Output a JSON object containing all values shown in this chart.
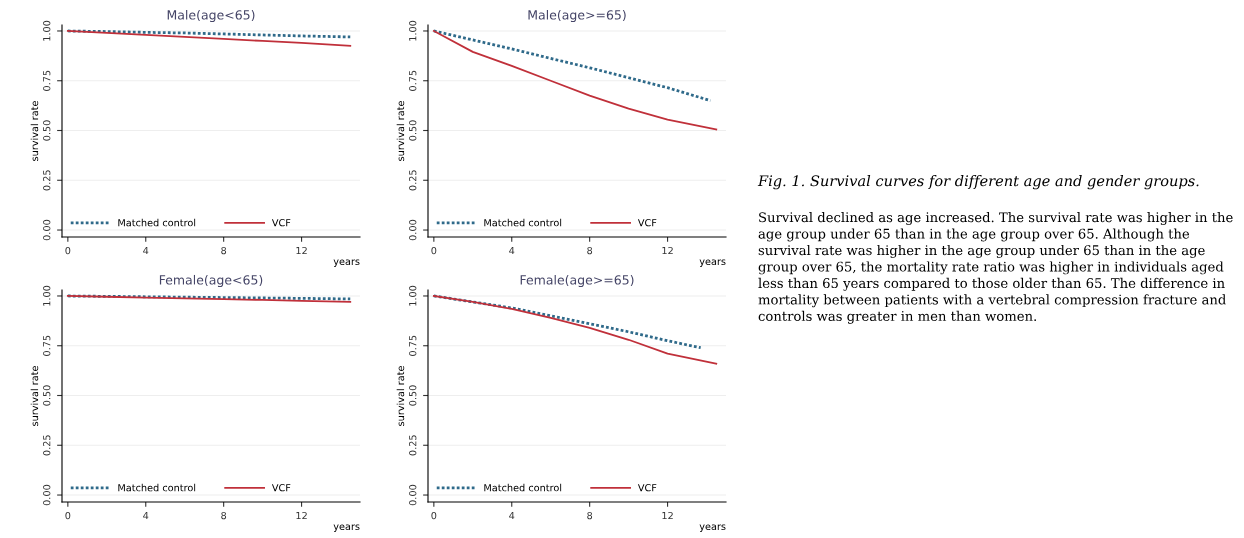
{
  "chart_data": [
    {
      "type": "line",
      "title": "Male(age<65)",
      "xlabel": "years",
      "ylabel": "survival rate",
      "xlim": [
        -0.3,
        15
      ],
      "ylim": [
        -0.035,
        1.03
      ],
      "xticks": [
        0,
        4,
        8,
        12
      ],
      "yticks": [
        {
          "value": 0,
          "label": "0.00"
        },
        {
          "value": 0.25,
          "label": "0.25"
        },
        {
          "value": 0.5,
          "label": "0.50"
        },
        {
          "value": 0.75,
          "label": "0.75"
        },
        {
          "value": 1,
          "label": "1.00"
        }
      ],
      "grid": "y",
      "legend": "bottom left",
      "x": [
        0,
        2,
        4,
        6,
        8,
        10,
        12,
        14.5
      ],
      "series": [
        {
          "name": "Matched control",
          "color": "#2f6a8a",
          "line_style": "dotted",
          "values": [
            1.0,
            0.997,
            0.993,
            0.99,
            0.985,
            0.98,
            0.975,
            0.97
          ]
        },
        {
          "name": "VCF",
          "color": "#c0303a",
          "line_style": "solid",
          "values": [
            1.0,
            0.99,
            0.98,
            0.97,
            0.96,
            0.95,
            0.94,
            0.925
          ]
        }
      ]
    },
    {
      "type": "line",
      "title": "Male(age>=65)",
      "xlabel": "years",
      "ylabel": "survival rate",
      "xlim": [
        -0.3,
        15
      ],
      "ylim": [
        -0.035,
        1.03
      ],
      "xticks": [
        0,
        4,
        8,
        12
      ],
      "yticks": [
        {
          "value": 0,
          "label": "0.00"
        },
        {
          "value": 0.25,
          "label": "0.25"
        },
        {
          "value": 0.5,
          "label": "0.50"
        },
        {
          "value": 0.75,
          "label": "0.75"
        },
        {
          "value": 1,
          "label": "1.00"
        }
      ],
      "grid": "y",
      "legend": "bottom left",
      "x": [
        0,
        2,
        4,
        6,
        8,
        10,
        12,
        14.2
      ],
      "series": [
        {
          "name": "Matched control",
          "color": "#2f6a8a",
          "line_style": "dotted",
          "values": [
            1.0,
            0.955,
            0.91,
            0.862,
            0.815,
            0.765,
            0.715,
            0.65
          ]
        },
        {
          "name": "VCF",
          "color": "#c0303a",
          "line_style": "solid",
          "x": [
            0,
            2,
            4,
            6,
            8,
            10,
            12,
            14.5
          ],
          "values": [
            1.0,
            0.895,
            0.825,
            0.75,
            0.675,
            0.61,
            0.555,
            0.505
          ]
        }
      ]
    },
    {
      "type": "line",
      "title": "Female(age<65)",
      "xlabel": "years",
      "ylabel": "survival rate",
      "xlim": [
        -0.3,
        15
      ],
      "ylim": [
        -0.035,
        1.03
      ],
      "xticks": [
        0,
        4,
        8,
        12
      ],
      "yticks": [
        {
          "value": 0,
          "label": "0.00"
        },
        {
          "value": 0.25,
          "label": "0.25"
        },
        {
          "value": 0.5,
          "label": "0.50"
        },
        {
          "value": 0.75,
          "label": "0.75"
        },
        {
          "value": 1,
          "label": "1.00"
        }
      ],
      "grid": "y",
      "legend": "bottom left",
      "x": [
        0,
        2,
        4,
        6,
        8,
        10,
        12,
        14.5
      ],
      "series": [
        {
          "name": "Matched control",
          "color": "#2f6a8a",
          "line_style": "dotted",
          "values": [
            1.0,
            0.998,
            0.996,
            0.994,
            0.992,
            0.99,
            0.988,
            0.985
          ]
        },
        {
          "name": "VCF",
          "color": "#c0303a",
          "line_style": "solid",
          "values": [
            1.0,
            0.996,
            0.992,
            0.988,
            0.984,
            0.98,
            0.975,
            0.97
          ]
        }
      ]
    },
    {
      "type": "line",
      "title": "Female(age>=65)",
      "xlabel": "years",
      "ylabel": "survival rate",
      "xlim": [
        -0.3,
        15
      ],
      "ylim": [
        -0.035,
        1.03
      ],
      "xticks": [
        0,
        4,
        8,
        12
      ],
      "yticks": [
        {
          "value": 0,
          "label": "0.00"
        },
        {
          "value": 0.25,
          "label": "0.25"
        },
        {
          "value": 0.5,
          "label": "0.50"
        },
        {
          "value": 0.75,
          "label": "0.75"
        },
        {
          "value": 1,
          "label": "1.00"
        }
      ],
      "grid": "y",
      "legend": "bottom left",
      "x": [
        0,
        2,
        4,
        6,
        8,
        10,
        12,
        13.7
      ],
      "series": [
        {
          "name": "Matched control",
          "color": "#2f6a8a",
          "line_style": "dotted",
          "values": [
            1.0,
            0.97,
            0.94,
            0.9,
            0.86,
            0.82,
            0.775,
            0.74
          ]
        },
        {
          "name": "VCF",
          "color": "#c0303a",
          "line_style": "solid",
          "x": [
            0,
            2,
            4,
            6,
            8,
            10,
            12,
            14.5
          ],
          "values": [
            1.0,
            0.97,
            0.935,
            0.89,
            0.84,
            0.78,
            0.71,
            0.66
          ]
        }
      ]
    },
    {
      "type": "other",
      "title": "Fig. 1. Survival curves for different age and gender groups.",
      "annotations": [
        "Survival declined as age increased. The survival rate was higher in the age group under 65 than in the age group over 65. Although the survival rate was higher in the age group under 65 than in the age group over 65, the mortality rate ratio was higher in individuals aged less than 65 years compared to those older than 65. The difference in mortality between patients with a vertebral compression fracture and controls was greater in men than women."
      ]
    }
  ]
}
